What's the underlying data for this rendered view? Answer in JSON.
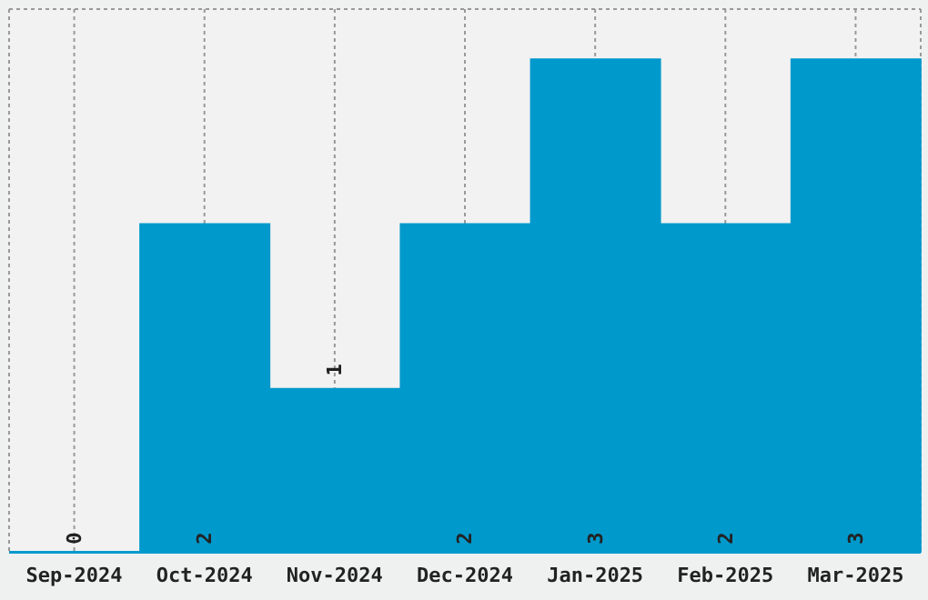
{
  "chart_data": {
    "type": "bar",
    "categories": [
      "Sep-2024",
      "Oct-2024",
      "Nov-2024",
      "Dec-2024",
      "Jan-2025",
      "Feb-2025",
      "Mar-2025"
    ],
    "values": [
      0,
      2,
      1,
      2,
      3,
      2,
      3
    ],
    "color": "#0099cc",
    "ylim": [
      0,
      3.3
    ],
    "tick_labels": "x",
    "grid": true,
    "data_labels": true
  }
}
